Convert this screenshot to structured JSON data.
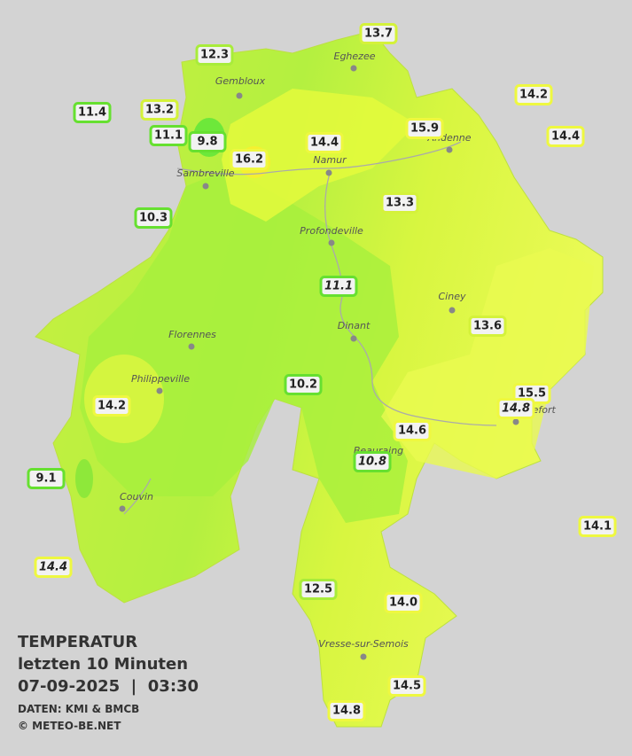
{
  "legend": {
    "title": "TEMPERATUR",
    "period": "letzten 10 Minuten",
    "datetime": "07-09-2025  |  03:30",
    "source": "DATEN: KMI & BMCB",
    "copyright": "© METEO-BE.NET"
  },
  "cities": [
    "Eghezee",
    "Gembloux",
    "Andenne",
    "Namur",
    "Sambreville",
    "Profondeville",
    "Ciney",
    "Dinant",
    "Florennes",
    "Philippeville",
    "Rochefort",
    "Beauraing",
    "Couvin",
    "Vresse-sur-Semois"
  ],
  "stations": [
    "13.7",
    "12.3",
    "14.2",
    "11.4",
    "13.2",
    "15.9",
    "11.1",
    "9.8",
    "14.4",
    "14.4",
    "16.2",
    "10.3",
    "13.3",
    "11.1",
    "13.6",
    "10.2",
    "15.5",
    "14.2",
    "14.8",
    "14.6",
    "10.8",
    "9.1",
    "14.1",
    "14.4",
    "12.5",
    "14.0",
    "14.5",
    "14.8"
  ]
}
